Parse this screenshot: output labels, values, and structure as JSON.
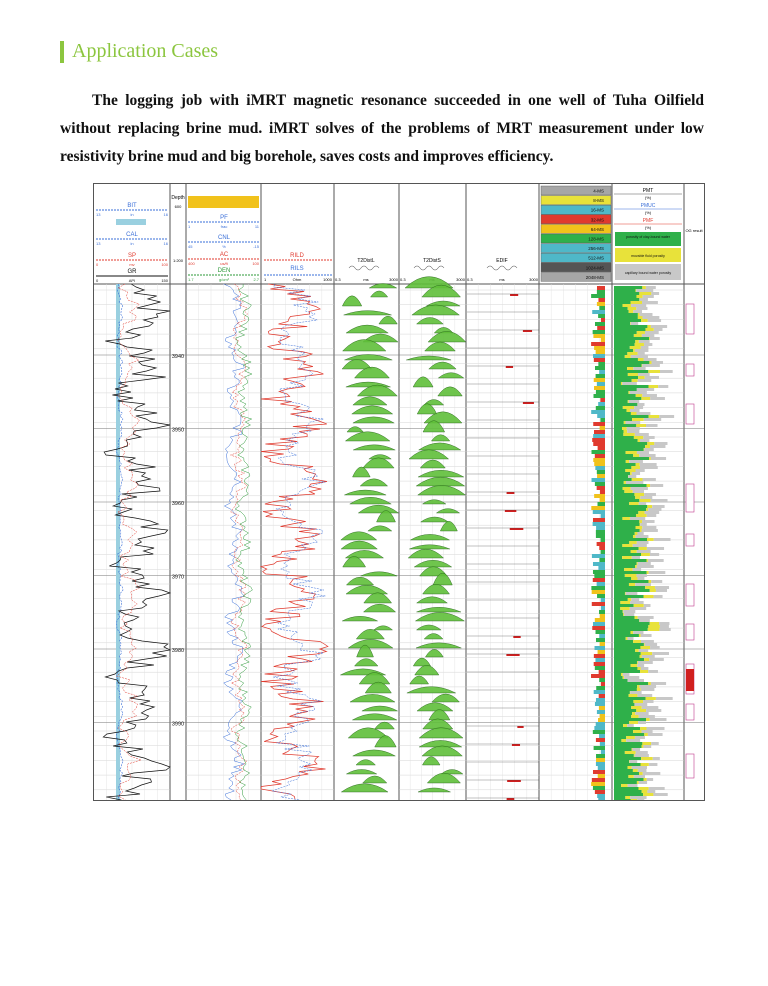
{
  "section": {
    "title": "Application Cases"
  },
  "paragraph": "The logging job with iMRT magnetic resonance succeeded in one well of Tuha Oilfield without replacing brine mud. iMRT solves of the problems of MRT measurement under low resistivity brine mud and big borehole, saves costs and improves efficiency.",
  "log": {
    "track1": {
      "curves": [
        {
          "name": "BIT",
          "left": "13",
          "mid": "in",
          "right": "16",
          "color": "#3a6fd8"
        },
        {
          "name": "CAL",
          "left": "13",
          "mid": "in",
          "right": "16",
          "color": "#3a6fd8"
        },
        {
          "name": "SP",
          "left": "0",
          "mid": "mv",
          "right": "100",
          "color": "#e03a2e"
        },
        {
          "name": "GR",
          "left": "0",
          "mid": "API",
          "right": "150",
          "color": "#111111"
        }
      ]
    },
    "depth": {
      "label": "Depth",
      "scale_top": "600",
      "scale_bottom": "1:200",
      "marks": [
        "3940",
        "3950",
        "3960",
        "3970",
        "3980",
        "3990"
      ]
    },
    "track2": {
      "curves": [
        {
          "name": "PF",
          "left": "1",
          "mid": "frac",
          "right": "11",
          "color": "#3a6fd8"
        },
        {
          "name": "CNL",
          "left": "45",
          "mid": "%",
          "right": "-15",
          "color": "#3a6fd8"
        },
        {
          "name": "AC",
          "left": "400",
          "mid": "us/ft",
          "right": "100",
          "color": "#e03a2e"
        },
        {
          "name": "DEN",
          "left": "1.7",
          "mid": "g/cm³",
          "right": "2.7",
          "color": "#2e9a3a"
        }
      ]
    },
    "track3": {
      "curves": [
        {
          "name": "RILD",
          "color": "#e03a2e"
        },
        {
          "name": "RILS",
          "color": "#3a6fd8"
        }
      ],
      "scale": {
        "left": "1",
        "mid": "Ohm",
        "right": "1000"
      }
    },
    "t2_tracks": [
      {
        "name": "T2DistL",
        "left": "0.3",
        "mid": "ms",
        "right": "3000"
      },
      {
        "name": "T2DistS",
        "left": "0.3",
        "mid": "ms",
        "right": "3000"
      },
      {
        "name": "EDIF",
        "left": "0.3",
        "mid": "ms",
        "right": "3000"
      }
    ],
    "bins": [
      "4-MS",
      "8-MS",
      "16-MS",
      "32-MS",
      "64-MS",
      "128-MS",
      "256-MS",
      "512-MS",
      "1024-MS",
      "2048-MS"
    ],
    "porosity": {
      "header": "PMT",
      "rows": [
        {
          "name": "PMUC",
          "unit": "(%)"
        },
        {
          "name": "PMF",
          "unit": "(%)"
        }
      ],
      "legend": [
        "porosity of clay-bound water",
        "movable fluid porosity",
        "capillary bound water porosity"
      ],
      "og_label": "OG result"
    }
  }
}
